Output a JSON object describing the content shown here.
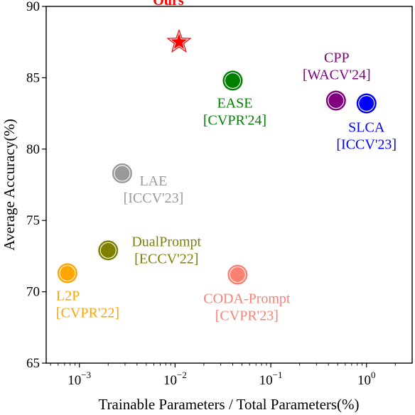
{
  "chart_data": {
    "type": "scatter",
    "xlabel": "Trainable Parameters / Total Parameters(%)",
    "ylabel": "Average Accuracy(%)",
    "xscale": "log",
    "xlim": [
      0.00045,
      3.0
    ],
    "ylim": [
      65,
      90
    ],
    "yticks": [
      65,
      70,
      75,
      80,
      85,
      90
    ],
    "xticks": [
      {
        "value": 0.001,
        "base": "10",
        "exp": "−3"
      },
      {
        "value": 0.01,
        "base": "10",
        "exp": "−2"
      },
      {
        "value": 0.1,
        "base": "10",
        "exp": "−1"
      },
      {
        "value": 1,
        "base": "10",
        "exp": "0"
      }
    ],
    "points": [
      {
        "key": "ours",
        "x": 0.011,
        "y": 87.5,
        "marker": "star",
        "color": "#ff0000",
        "lines": [
          "Ours"
        ]
      },
      {
        "key": "ease",
        "x": 0.04,
        "y": 84.8,
        "marker": "circle",
        "color": "#008000",
        "lines": [
          "EASE",
          "[CVPR'24]"
        ]
      },
      {
        "key": "cpp",
        "x": 0.48,
        "y": 83.4,
        "marker": "circle",
        "color": "#800080",
        "lines": [
          "CPP",
          "[WACV'24]"
        ]
      },
      {
        "key": "slca",
        "x": 1.0,
        "y": 83.2,
        "marker": "circle",
        "color": "#0000ff",
        "lines": [
          "SLCA",
          "[ICCV'23]"
        ]
      },
      {
        "key": "lae",
        "x": 0.0028,
        "y": 78.3,
        "marker": "circle",
        "color": "#999999",
        "lines": [
          "LAE",
          "[ICCV'23]"
        ]
      },
      {
        "key": "dualprompt",
        "x": 0.002,
        "y": 72.9,
        "marker": "circle",
        "color": "#808000",
        "lines": [
          "DualPrompt",
          "[ECCV'22]"
        ]
      },
      {
        "key": "l2p",
        "x": 0.00075,
        "y": 71.3,
        "marker": "circle",
        "color": "#ffa500",
        "lines": [
          "L2P",
          "[CVPR'22]"
        ]
      },
      {
        "key": "coda",
        "x": 0.045,
        "y": 71.2,
        "marker": "circle",
        "color": "#fa8072",
        "lines": [
          "CODA-Prompt",
          "[CVPR'23]"
        ]
      }
    ]
  }
}
